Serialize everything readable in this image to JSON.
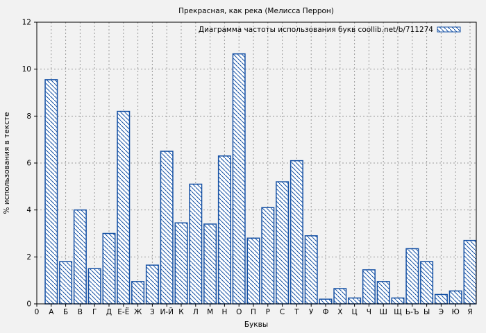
{
  "colors": {
    "accent": "#1450a4",
    "background": "#f2f2f2",
    "grid": "#9a9a9a",
    "text": "#000000"
  },
  "chart_data": {
    "type": "bar",
    "title": "Прекрасная, как река (Мелисса Перрон)",
    "legend": "Диаграмма частоты использования букв coollib.net/b/711274",
    "legend_position": "top-right-inside",
    "xlabel": "Буквы",
    "ylabel": "% использования в тексте",
    "ylim": [
      0,
      12
    ],
    "yticks": [
      0,
      2,
      4,
      6,
      8,
      10,
      12
    ],
    "origin_tick_label": "0",
    "grid": true,
    "bar_style": "diagonal-hatch",
    "categories": [
      "А",
      "Б",
      "В",
      "Г",
      "Д",
      "Е-Ё",
      "Ж",
      "З",
      "И-Й",
      "К",
      "Л",
      "М",
      "Н",
      "О",
      "П",
      "Р",
      "С",
      "Т",
      "У",
      "Ф",
      "Х",
      "Ц",
      "Ч",
      "Ш",
      "Щ",
      "Ь-Ъ",
      "Ы",
      "Э",
      "Ю",
      "Я"
    ],
    "values": [
      9.55,
      1.8,
      4.0,
      1.5,
      3.0,
      8.2,
      0.95,
      1.65,
      6.5,
      3.45,
      5.1,
      3.4,
      6.3,
      10.65,
      2.8,
      4.1,
      5.2,
      6.1,
      2.9,
      0.2,
      0.65,
      0.25,
      1.45,
      0.95,
      0.25,
      2.35,
      1.8,
      0.4,
      0.55,
      2.7
    ]
  }
}
